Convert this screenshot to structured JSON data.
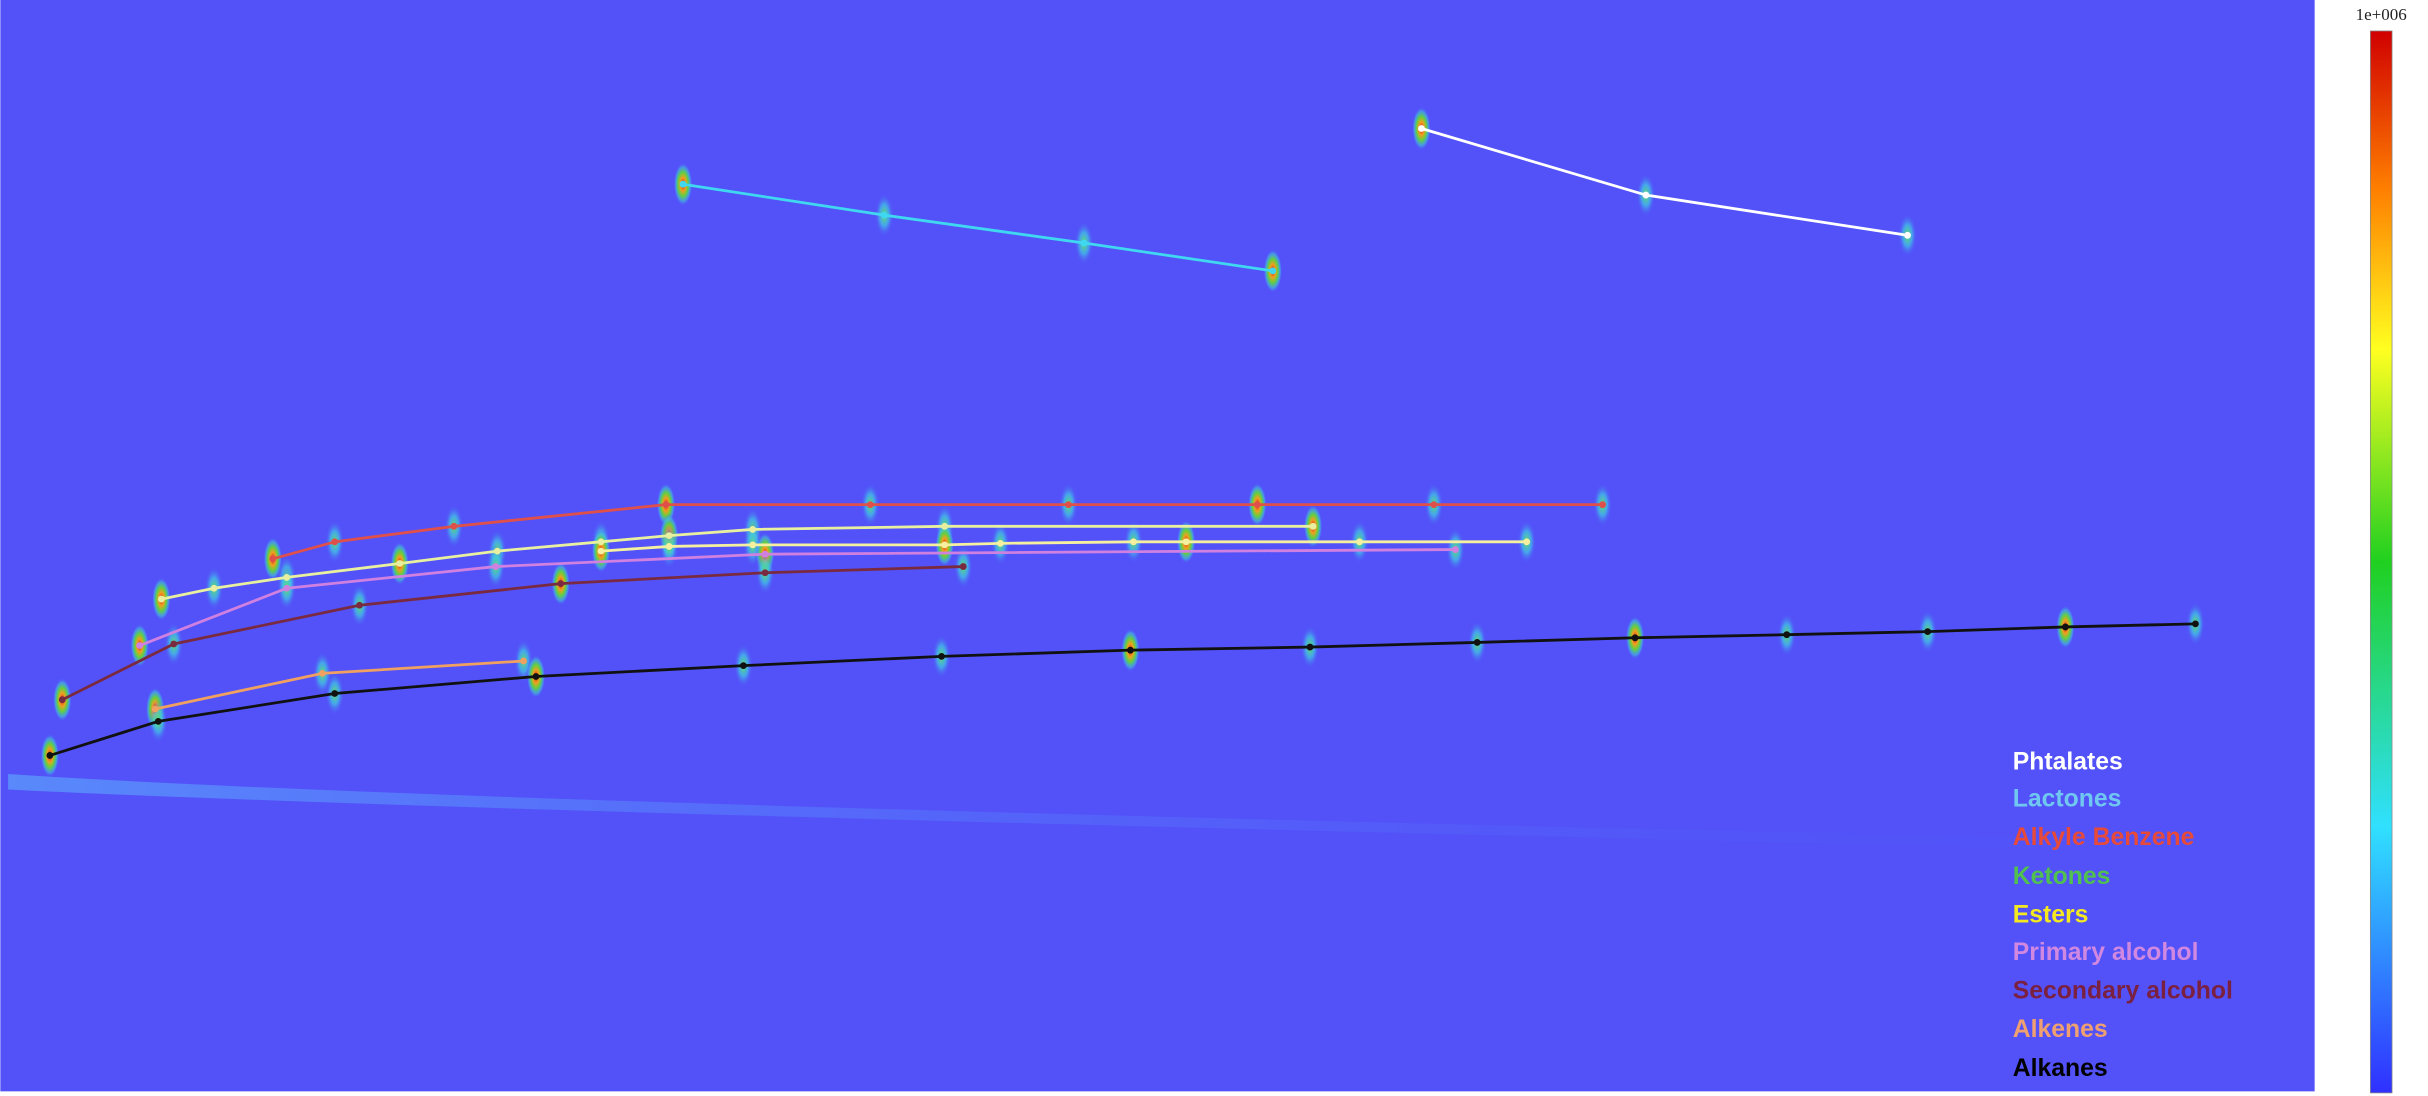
{
  "colorbar": {
    "max_label": "1e+006"
  },
  "legend": [
    "Phtalates",
    "Lactones",
    "Alkyle Benzene",
    "Ketones",
    "Esters",
    "Primary alcohol",
    "Secondary alcohol",
    "Alkenes",
    "Alkanes"
  ]
}
